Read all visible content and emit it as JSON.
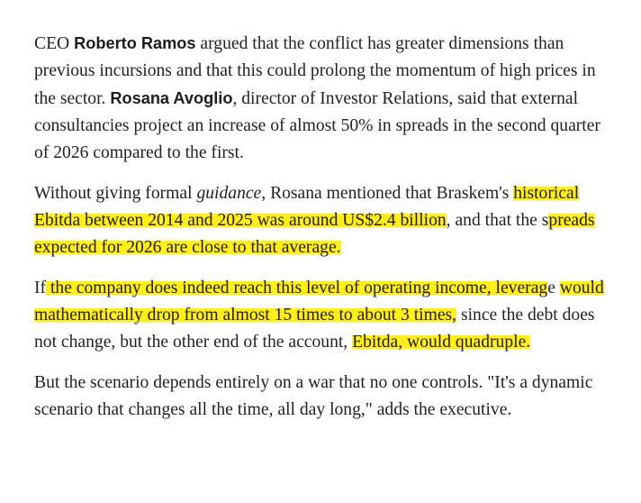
{
  "colors": {
    "text": "#222222",
    "highlight": "#ffee1a",
    "background": "#ffffff"
  },
  "paragraphs": [
    {
      "p1_pre": "CEO ",
      "p1_name1": "Roberto Ramos",
      "p1_mid": " argued that the conflict has greater dimensions than previous incursions and that this could prolong the momentum of high prices in the sector. ",
      "p1_name2": "Rosana Avoglio",
      "p1_post": ", director of Investor Relations, said that external consultancies project an increase of almost 50% in spreads in the second quarter of 2026 compared to the first."
    },
    {
      "p2_pre": "Without giving formal ",
      "p2_em": "guidance",
      "p2_mid1": ", Rosana mentioned that Braskem's\n",
      "p2_hl1": "historical Ebitda between 2014 and 2025 was around US$2.4 billion",
      "p2_mid2": ", and\nthat the s",
      "p2_hl2": "preads expected for 2026 are close to that average.",
      "p2_post": ""
    },
    {
      "p3_pre": "If",
      "p3_hl1": " the company does indeed reach this level of operating income, leverag",
      "p3_mid1": "e\n",
      "p3_hl2": "would mathematically drop from almost 15 times to about 3 times,",
      "p3_mid2": " since\nthe debt does not change, but the other end of the account, ",
      "p3_hl3": "Ebitda, would\nquadruple.",
      "p3_post": ""
    },
    {
      "p4_text": "But the scenario depends entirely on a war that no one controls. \"It's a dynamic scenario that changes all the time, all day long,\" adds the executive."
    }
  ]
}
